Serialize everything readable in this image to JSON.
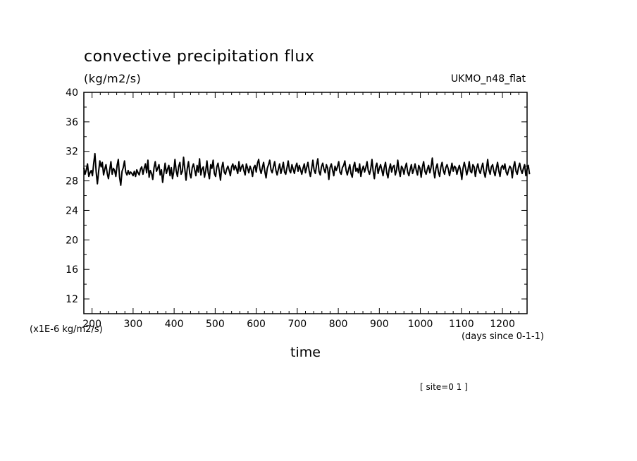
{
  "chart_data": {
    "type": "line",
    "title": "convective precipitation flux",
    "units_label": "(kg/m2/s)",
    "model_label": "UKMO_n48_flat",
    "y_scale_label": "(x1E-6 kg/m2/s)",
    "xlabel": "time",
    "x_units_label": "(days since 0-1-1)",
    "site_label": "[ site=0 1 ]",
    "xlim": [
      180,
      1260
    ],
    "ylim": [
      10,
      40
    ],
    "x_ticks": [
      200,
      300,
      400,
      500,
      600,
      700,
      800,
      900,
      1000,
      1100,
      1200
    ],
    "y_ticks": [
      12,
      16,
      20,
      24,
      28,
      32,
      36,
      40
    ],
    "series": [
      {
        "x_start": 180,
        "x_step": 3,
        "values": [
          29.8,
          28.9,
          29.5,
          30.3,
          28.6,
          29.1,
          29.4,
          28.7,
          30.4,
          31.7,
          29.2,
          27.6,
          29.3,
          30.7,
          29.9,
          30.5,
          28.8,
          29.6,
          30.2,
          29.0,
          28.3,
          29.5,
          30.6,
          28.9,
          29.7,
          29.4,
          28.6,
          30.1,
          30.9,
          28.5,
          27.4,
          29.3,
          29.8,
          30.7,
          29.2,
          28.8,
          29.4,
          28.9,
          29.2,
          29.0,
          28.7,
          29.3,
          28.6,
          29.5,
          29.1,
          28.8,
          29.6,
          29.9,
          28.9,
          29.7,
          30.3,
          29.1,
          30.8,
          28.5,
          29.4,
          29.0,
          28.2,
          29.8,
          30.6,
          29.3,
          29.7,
          30.2,
          28.8,
          29.5,
          27.8,
          29.1,
          30.4,
          29.0,
          29.6,
          30.1,
          28.7,
          29.8,
          28.3,
          29.2,
          30.9,
          29.4,
          28.6,
          29.9,
          30.5,
          28.9,
          29.3,
          31.2,
          29.6,
          28.1,
          29.7,
          30.6,
          29.0,
          28.4,
          29.8,
          30.3,
          29.5,
          28.7,
          30.1,
          29.2,
          31.0,
          28.8,
          29.6,
          29.9,
          28.5,
          29.4,
          30.7,
          29.1,
          28.3,
          30.2,
          29.7,
          30.8,
          29.0,
          28.6,
          29.9,
          30.4,
          29.3,
          28.1,
          29.8,
          30.5,
          29.2,
          28.9,
          29.6,
          30.0,
          29.4,
          28.7,
          29.9,
          30.3,
          29.5,
          30.1,
          29.6,
          29.0,
          30.6,
          29.3,
          29.9,
          30.2,
          29.4,
          28.8,
          30.3,
          29.7,
          29.1,
          30.0,
          29.5,
          28.6,
          29.8,
          30.1,
          29.2,
          30.4,
          30.9,
          29.6,
          29.0,
          29.8,
          30.5,
          29.3,
          28.4,
          29.7,
          30.2,
          30.8,
          29.5,
          29.1,
          29.9,
          30.6,
          29.4,
          28.8,
          29.6,
          30.3,
          29.0,
          29.7,
          30.5,
          29.2,
          28.9,
          29.8,
          30.7,
          29.4,
          29.1,
          30.2,
          29.6,
          29.0,
          29.9,
          30.4,
          29.3,
          30.1,
          29.5,
          28.9,
          29.7,
          30.3,
          29.1,
          29.8,
          30.5,
          29.4,
          28.6,
          29.6,
          30.8,
          29.5,
          29.0,
          30.1,
          31.0,
          29.3,
          28.8,
          29.9,
          30.4,
          29.6,
          29.1,
          30.2,
          29.7,
          28.2,
          29.8,
          30.3,
          29.5,
          28.7,
          30.0,
          29.4,
          29.9,
          30.6,
          29.2,
          28.9,
          29.8,
          30.1,
          30.7,
          29.4,
          28.8,
          29.6,
          30.2,
          29.0,
          28.5,
          29.9,
          30.5,
          29.3,
          29.7,
          29.1,
          30.3,
          28.6,
          29.5,
          30.0,
          29.2,
          29.8,
          30.6,
          29.4,
          28.9,
          29.6,
          30.9,
          29.3,
          28.3,
          29.9,
          30.4,
          29.0,
          29.7,
          30.2,
          29.5,
          28.7,
          29.8,
          30.5,
          29.1,
          28.4,
          29.6,
          30.3,
          29.2,
          29.9,
          30.1,
          28.8,
          29.5,
          30.8,
          29.4,
          28.6,
          30.0,
          29.7,
          28.9,
          29.8,
          30.4,
          29.2,
          28.7,
          29.5,
          30.2,
          29.0,
          29.6,
          30.3,
          29.4,
          28.8,
          30.1,
          29.7,
          28.5,
          29.9,
          30.6,
          29.3,
          28.9,
          29.6,
          30.1,
          29.1,
          29.8,
          31.1,
          29.5,
          28.4,
          29.7,
          30.3,
          29.2,
          28.6,
          29.9,
          30.5,
          29.4,
          28.9,
          29.8,
          30.2,
          29.6,
          28.7,
          29.5,
          30.4,
          29.3,
          30.0,
          29.8,
          28.9,
          29.6,
          30.1,
          29.4,
          28.2,
          29.7,
          30.5,
          29.8,
          28.8,
          29.5,
          30.6,
          29.3,
          29.1,
          30.2,
          29.9,
          28.6,
          29.7,
          30.3,
          29.4,
          29.0,
          29.8,
          30.4,
          29.2,
          28.5,
          29.6,
          30.9,
          29.5,
          28.9,
          29.9,
          30.2,
          29.3,
          28.7,
          29.7,
          30.5,
          29.4,
          28.6,
          29.8,
          30.1,
          29.6,
          30.3,
          29.2,
          28.8,
          29.5,
          30.0,
          29.7,
          28.4,
          29.9,
          30.6,
          29.3,
          28.9,
          29.8,
          30.4,
          29.5,
          29.0,
          29.7,
          30.2,
          28.7,
          29.6,
          30.1,
          28.9
        ]
      }
    ],
    "grid": false,
    "legend": "none"
  }
}
